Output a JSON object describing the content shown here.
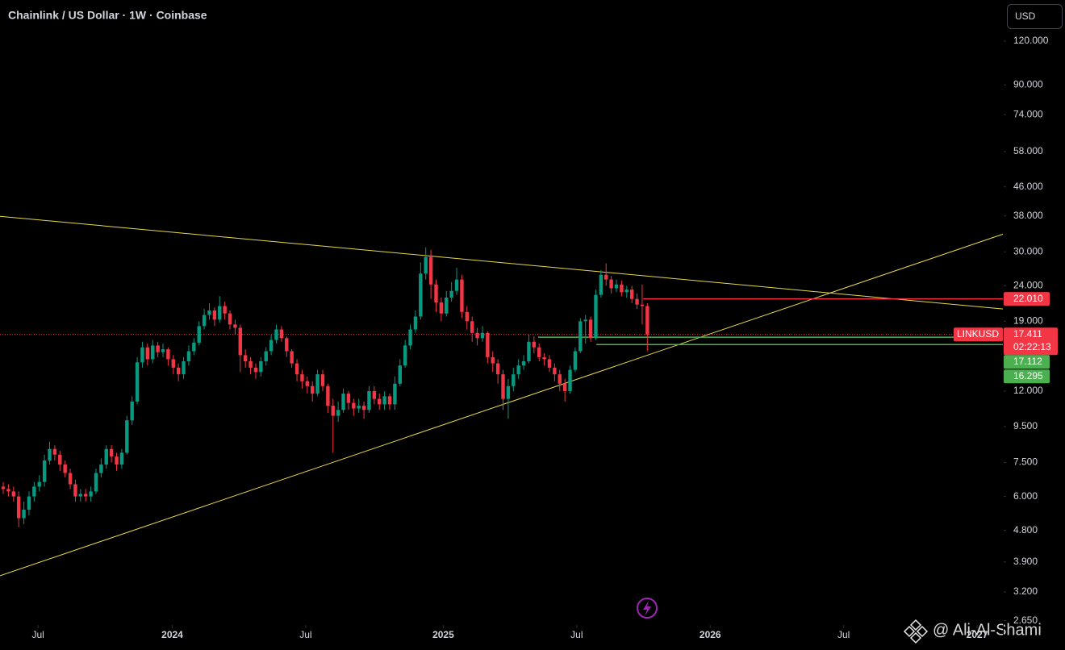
{
  "chart_data": {
    "type": "candlestick",
    "title": "Chainlink / US Dollar · 1W · Coinbase",
    "currency": "USD",
    "watermark": "@ Ali-Al-Shami",
    "log_scale": true,
    "up_color": "#089981",
    "down_color": "#f23645",
    "xlim": [
      -0.63,
      194.0
    ],
    "xticks": [
      {
        "value": 6.75,
        "label": "Jul"
      },
      {
        "value": 32.8,
        "label": "2024"
      },
      {
        "value": 58.7,
        "label": "Jul"
      },
      {
        "value": 85.4,
        "label": "2025"
      },
      {
        "value": 111.3,
        "label": "Jul"
      },
      {
        "value": 137.2,
        "label": "2026"
      },
      {
        "value": 163.1,
        "label": "Jul"
      },
      {
        "value": 189.0,
        "label": "2027"
      }
    ],
    "ylim": [
      2.575,
      157.3
    ],
    "yticks": [
      {
        "value": 120,
        "label": "120.000"
      },
      {
        "value": 90,
        "label": "90.000"
      },
      {
        "value": 74,
        "label": "74.000"
      },
      {
        "value": 58,
        "label": "58.000"
      },
      {
        "value": 46,
        "label": "46.000"
      },
      {
        "value": 38,
        "label": "38.000"
      },
      {
        "value": 30,
        "label": "30.000"
      },
      {
        "value": 24,
        "label": "24.000"
      },
      {
        "value": 19,
        "label": "19.000"
      },
      {
        "value": 12,
        "label": "12.000"
      },
      {
        "value": 9.5,
        "label": "9.500"
      },
      {
        "value": 7.5,
        "label": "7.500"
      },
      {
        "value": 6,
        "label": "6.000"
      },
      {
        "value": 4.8,
        "label": "4.800"
      },
      {
        "value": 3.9,
        "label": "3.900"
      },
      {
        "value": 3.2,
        "label": "3.200"
      },
      {
        "value": 2.65,
        "label": "2.650"
      }
    ],
    "ohlc": {
      "open": [
        6.4,
        6.3,
        6.2,
        6.0,
        5.2,
        5.5,
        6.0,
        6.4,
        6.6,
        7.6,
        8.2,
        7.9,
        7.4,
        7.0,
        6.5,
        6.0,
        6.1,
        6.0,
        6.2,
        7.0,
        7.4,
        8.2,
        7.8,
        7.4,
        8.0,
        9.9,
        11.2,
        14.5,
        16.0,
        14.8,
        16.2,
        15.5,
        15.8,
        14.8,
        14.0,
        13.4,
        14.6,
        15.6,
        16.5,
        18.4,
        19.8,
        20.4,
        19.2,
        21.0,
        20.0,
        18.6,
        18.2,
        15.2,
        14.6,
        14.0,
        13.6,
        14.6,
        15.6,
        16.8,
        18.0,
        17.0,
        15.6,
        14.4,
        13.4,
        12.8,
        12.4,
        11.8,
        13.4,
        12.4,
        10.9,
        10.2,
        10.6,
        11.8,
        11.1,
        10.7,
        10.9,
        10.6,
        12.0,
        11.4,
        11.0,
        11.6,
        11.0,
        12.6,
        14.2,
        16.2,
        18.0,
        19.6,
        26.0,
        29.0,
        24.2,
        21.5,
        20.0,
        22.2,
        23.2,
        25.0,
        20.2,
        19.0,
        17.6,
        17.0,
        17.6,
        15.0,
        14.4,
        13.4,
        11.4,
        12.4,
        13.4,
        14.2,
        14.6,
        16.6,
        16.0,
        15.0,
        14.8,
        14.0,
        13.4,
        12.6,
        12.0,
        13.8,
        15.6,
        19.0,
        19.2,
        17.0,
        22.6,
        25.8,
        25.0,
        23.6,
        24.2,
        23.0,
        23.4,
        22.0,
        21.2,
        21.0
      ],
      "high": [
        6.6,
        6.5,
        6.4,
        6.2,
        5.8,
        6.2,
        6.6,
        6.9,
        7.9,
        8.6,
        8.4,
        8.1,
        7.6,
        7.2,
        6.7,
        6.3,
        6.3,
        6.4,
        7.2,
        7.7,
        8.4,
        8.4,
        8.0,
        8.2,
        10.2,
        11.6,
        15.0,
        16.6,
        16.4,
        16.8,
        16.6,
        16.4,
        16.0,
        15.2,
        14.4,
        15.0,
        16.2,
        17.0,
        19.0,
        20.6,
        21.4,
        20.8,
        22.4,
        21.6,
        20.4,
        19.2,
        18.6,
        15.8,
        15.0,
        14.4,
        15.0,
        16.0,
        17.4,
        18.6,
        18.4,
        17.2,
        15.8,
        14.8,
        13.8,
        13.2,
        12.8,
        13.8,
        13.8,
        12.6,
        11.4,
        11.2,
        12.2,
        12.0,
        11.4,
        11.4,
        11.2,
        12.4,
        12.4,
        11.8,
        12.0,
        11.8,
        13.2,
        14.8,
        16.8,
        18.6,
        20.4,
        28.0,
        30.9,
        30.4,
        25.0,
        22.2,
        23.2,
        24.6,
        27.0,
        25.8,
        21.0,
        19.6,
        18.2,
        18.4,
        17.8,
        15.6,
        14.8,
        13.8,
        13.0,
        14.0,
        14.8,
        15.2,
        17.4,
        17.2,
        16.4,
        15.4,
        15.2,
        14.4,
        13.8,
        13.0,
        14.2,
        16.0,
        19.4,
        19.8,
        19.6,
        23.4,
        26.6,
        27.8,
        25.6,
        25.0,
        24.8,
        24.0,
        24.0,
        22.8,
        24.2,
        21.4
      ],
      "low": [
        6.1,
        6.0,
        5.8,
        4.9,
        5.0,
        5.3,
        5.8,
        6.2,
        6.4,
        7.4,
        7.6,
        7.1,
        6.8,
        6.3,
        5.8,
        5.8,
        5.8,
        5.8,
        6.1,
        6.8,
        7.2,
        7.5,
        7.1,
        7.2,
        7.9,
        9.6,
        11.0,
        14.0,
        14.2,
        14.4,
        15.0,
        15.0,
        14.2,
        13.4,
        12.8,
        13.0,
        14.2,
        15.2,
        16.2,
        18.0,
        19.2,
        18.4,
        18.8,
        19.2,
        18.0,
        17.4,
        13.6,
        14.0,
        13.4,
        13.0,
        13.2,
        14.2,
        15.2,
        16.4,
        16.6,
        15.0,
        14.0,
        12.8,
        12.2,
        11.8,
        11.2,
        11.6,
        12.0,
        10.4,
        8.0,
        9.8,
        10.4,
        10.6,
        10.2,
        10.4,
        10.0,
        10.4,
        11.0,
        10.6,
        10.6,
        10.6,
        10.6,
        12.4,
        14.0,
        15.8,
        17.6,
        19.2,
        25.0,
        22.0,
        20.2,
        19.0,
        19.6,
        21.6,
        22.6,
        19.4,
        18.0,
        16.6,
        16.2,
        16.6,
        14.4,
        13.6,
        12.6,
        10.6,
        10.0,
        12.0,
        13.0,
        13.8,
        14.4,
        15.4,
        14.6,
        14.2,
        13.6,
        12.8,
        12.0,
        11.2,
        11.8,
        13.6,
        15.4,
        16.4,
        16.6,
        16.8,
        22.2,
        24.0,
        22.8,
        23.0,
        22.4,
        22.2,
        21.4,
        20.6,
        18.6,
        15.6
      ],
      "close": [
        6.3,
        6.2,
        6.0,
        5.2,
        5.5,
        6.0,
        6.4,
        6.6,
        7.6,
        8.2,
        7.9,
        7.4,
        7.0,
        6.5,
        6.0,
        6.1,
        6.0,
        6.2,
        7.0,
        7.4,
        8.2,
        7.8,
        7.4,
        8.0,
        9.9,
        11.2,
        14.5,
        16.0,
        14.8,
        16.2,
        15.5,
        15.8,
        14.8,
        14.0,
        13.4,
        14.6,
        15.6,
        16.5,
        18.4,
        19.8,
        20.4,
        19.2,
        21.0,
        20.0,
        18.6,
        18.2,
        15.2,
        14.6,
        14.0,
        13.6,
        14.6,
        15.6,
        16.8,
        18.0,
        17.0,
        15.6,
        14.4,
        13.4,
        12.8,
        12.4,
        11.8,
        13.4,
        12.4,
        10.9,
        10.2,
        10.6,
        11.8,
        11.1,
        10.7,
        10.9,
        10.6,
        12.0,
        11.4,
        11.0,
        11.6,
        11.0,
        12.6,
        14.2,
        16.2,
        18.0,
        19.6,
        26.0,
        29.0,
        24.2,
        21.5,
        20.0,
        22.2,
        23.2,
        25.0,
        20.2,
        19.0,
        17.6,
        17.0,
        17.6,
        15.0,
        14.4,
        13.4,
        11.4,
        12.4,
        13.4,
        14.2,
        14.6,
        16.6,
        16.0,
        15.0,
        14.8,
        14.0,
        13.4,
        12.6,
        12.0,
        13.8,
        15.6,
        19.0,
        19.2,
        17.0,
        22.6,
        25.8,
        25.0,
        23.6,
        24.2,
        23.0,
        23.4,
        22.0,
        21.2,
        21.0,
        17.411
      ]
    },
    "trendlines": [
      {
        "color": "#e8d84a",
        "x": [
          -0.63,
          194.0
        ],
        "y": [
          37.9,
          20.6
        ]
      },
      {
        "color": "#e8d84a",
        "x": [
          -0.63,
          194.0
        ],
        "y": [
          3.56,
          33.7
        ]
      }
    ],
    "levels": [
      {
        "price": {
          "value": 22.01,
          "label": "22.010"
        },
        "start": 124.2,
        "color": "#f23645"
      },
      {
        "price": {
          "value": 17.112,
          "label": "17.112"
        },
        "start": 103.8,
        "color": "#4caf50"
      },
      {
        "price": {
          "value": 16.295,
          "label": "16.295"
        },
        "start": 115.1,
        "color": "#4caf50"
      }
    ],
    "last_price": {
      "symbol": "LINKUSD",
      "price": {
        "value": 17.411,
        "label": "17.411"
      },
      "countdown": "02:22:13",
      "color": "#f23645"
    }
  }
}
